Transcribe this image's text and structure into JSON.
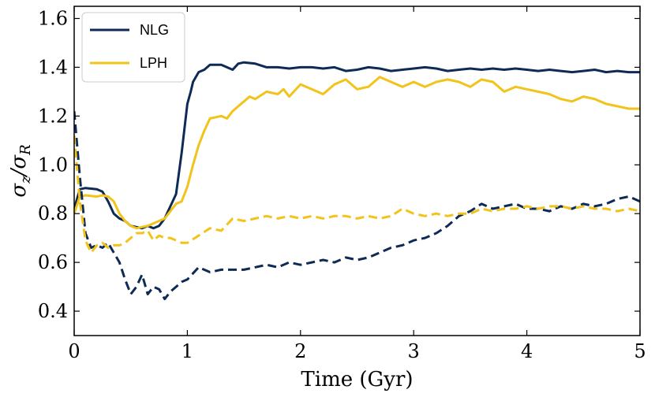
{
  "chart_data": {
    "type": "line",
    "title": "",
    "xlabel": "Time (Gyr)",
    "ylabel": "σz/σR",
    "ylabel_main": "σ",
    "ylabel_sub1": "z",
    "ylabel_slash": "/σ",
    "ylabel_sub2": "R",
    "xlim": [
      0,
      5
    ],
    "ylim": [
      0.3,
      1.65
    ],
    "xticks": [
      0,
      1,
      2,
      3,
      4,
      5
    ],
    "xtick_labels": [
      "0",
      "1",
      "2",
      "3",
      "4",
      "5"
    ],
    "yticks": [
      0.4,
      0.6,
      0.8,
      1.0,
      1.2,
      1.4,
      1.6
    ],
    "ytick_labels": [
      "0.4",
      "0.6",
      "0.8",
      "1.0",
      "1.2",
      "1.4",
      "1.6"
    ],
    "grid": false,
    "legend_position": "top-left",
    "colors": {
      "NLG": "#0d2b55",
      "LPH": "#f2c31a"
    },
    "series": [
      {
        "name": "NLG",
        "style": "solid",
        "in_legend": true,
        "points": [
          [
            0,
            0.82
          ],
          [
            0.05,
            0.9
          ],
          [
            0.1,
            0.905
          ],
          [
            0.2,
            0.9
          ],
          [
            0.25,
            0.89
          ],
          [
            0.3,
            0.85
          ],
          [
            0.35,
            0.8
          ],
          [
            0.4,
            0.78
          ],
          [
            0.45,
            0.77
          ],
          [
            0.5,
            0.75
          ],
          [
            0.6,
            0.74
          ],
          [
            0.65,
            0.75
          ],
          [
            0.7,
            0.74
          ],
          [
            0.75,
            0.75
          ],
          [
            0.8,
            0.78
          ],
          [
            0.85,
            0.83
          ],
          [
            0.9,
            0.88
          ],
          [
            0.95,
            1.05
          ],
          [
            1.0,
            1.25
          ],
          [
            1.03,
            1.3
          ],
          [
            1.05,
            1.34
          ],
          [
            1.1,
            1.38
          ],
          [
            1.15,
            1.39
          ],
          [
            1.2,
            1.41
          ],
          [
            1.3,
            1.41
          ],
          [
            1.4,
            1.39
          ],
          [
            1.45,
            1.415
          ],
          [
            1.5,
            1.42
          ],
          [
            1.6,
            1.415
          ],
          [
            1.7,
            1.4
          ],
          [
            1.8,
            1.4
          ],
          [
            1.9,
            1.395
          ],
          [
            2.0,
            1.4
          ],
          [
            2.1,
            1.4
          ],
          [
            2.2,
            1.395
          ],
          [
            2.3,
            1.4
          ],
          [
            2.4,
            1.385
          ],
          [
            2.5,
            1.39
          ],
          [
            2.6,
            1.4
          ],
          [
            2.7,
            1.395
          ],
          [
            2.8,
            1.385
          ],
          [
            2.9,
            1.39
          ],
          [
            3.0,
            1.395
          ],
          [
            3.1,
            1.4
          ],
          [
            3.2,
            1.395
          ],
          [
            3.3,
            1.385
          ],
          [
            3.4,
            1.39
          ],
          [
            3.5,
            1.395
          ],
          [
            3.6,
            1.39
          ],
          [
            3.7,
            1.395
          ],
          [
            3.8,
            1.39
          ],
          [
            3.9,
            1.395
          ],
          [
            4.0,
            1.39
          ],
          [
            4.1,
            1.385
          ],
          [
            4.2,
            1.39
          ],
          [
            4.3,
            1.385
          ],
          [
            4.4,
            1.38
          ],
          [
            4.5,
            1.385
          ],
          [
            4.6,
            1.39
          ],
          [
            4.7,
            1.38
          ],
          [
            4.8,
            1.385
          ],
          [
            4.9,
            1.38
          ],
          [
            5.0,
            1.38
          ]
        ]
      },
      {
        "name": "LPH",
        "style": "solid",
        "in_legend": true,
        "points": [
          [
            0,
            0.8
          ],
          [
            0.05,
            0.87
          ],
          [
            0.1,
            0.875
          ],
          [
            0.2,
            0.87
          ],
          [
            0.25,
            0.875
          ],
          [
            0.3,
            0.87
          ],
          [
            0.35,
            0.85
          ],
          [
            0.4,
            0.8
          ],
          [
            0.45,
            0.77
          ],
          [
            0.5,
            0.75
          ],
          [
            0.55,
            0.74
          ],
          [
            0.6,
            0.745
          ],
          [
            0.65,
            0.75
          ],
          [
            0.7,
            0.76
          ],
          [
            0.75,
            0.77
          ],
          [
            0.8,
            0.78
          ],
          [
            0.85,
            0.81
          ],
          [
            0.9,
            0.84
          ],
          [
            0.95,
            0.85
          ],
          [
            1.0,
            0.91
          ],
          [
            1.05,
            1.0
          ],
          [
            1.1,
            1.08
          ],
          [
            1.15,
            1.14
          ],
          [
            1.2,
            1.19
          ],
          [
            1.3,
            1.2
          ],
          [
            1.35,
            1.19
          ],
          [
            1.4,
            1.22
          ],
          [
            1.45,
            1.24
          ],
          [
            1.5,
            1.26
          ],
          [
            1.55,
            1.28
          ],
          [
            1.6,
            1.27
          ],
          [
            1.7,
            1.3
          ],
          [
            1.8,
            1.29
          ],
          [
            1.85,
            1.31
          ],
          [
            1.9,
            1.28
          ],
          [
            2.0,
            1.33
          ],
          [
            2.1,
            1.31
          ],
          [
            2.2,
            1.29
          ],
          [
            2.3,
            1.33
          ],
          [
            2.4,
            1.35
          ],
          [
            2.5,
            1.31
          ],
          [
            2.6,
            1.32
          ],
          [
            2.7,
            1.36
          ],
          [
            2.8,
            1.34
          ],
          [
            2.9,
            1.32
          ],
          [
            3.0,
            1.34
          ],
          [
            3.1,
            1.32
          ],
          [
            3.2,
            1.34
          ],
          [
            3.3,
            1.35
          ],
          [
            3.4,
            1.34
          ],
          [
            3.5,
            1.32
          ],
          [
            3.6,
            1.35
          ],
          [
            3.7,
            1.34
          ],
          [
            3.8,
            1.3
          ],
          [
            3.9,
            1.32
          ],
          [
            4.0,
            1.31
          ],
          [
            4.1,
            1.3
          ],
          [
            4.2,
            1.29
          ],
          [
            4.3,
            1.27
          ],
          [
            4.4,
            1.26
          ],
          [
            4.5,
            1.28
          ],
          [
            4.6,
            1.27
          ],
          [
            4.7,
            1.25
          ],
          [
            4.8,
            1.24
          ],
          [
            4.9,
            1.23
          ],
          [
            5.0,
            1.23
          ]
        ]
      },
      {
        "name": "NLG (dashed)",
        "style": "dashed",
        "in_legend": false,
        "color_key": "NLG",
        "points": [
          [
            0,
            1.22
          ],
          [
            0.05,
            0.95
          ],
          [
            0.1,
            0.72
          ],
          [
            0.15,
            0.66
          ],
          [
            0.2,
            0.67
          ],
          [
            0.25,
            0.66
          ],
          [
            0.3,
            0.68
          ],
          [
            0.35,
            0.64
          ],
          [
            0.4,
            0.6
          ],
          [
            0.45,
            0.53
          ],
          [
            0.5,
            0.47
          ],
          [
            0.55,
            0.5
          ],
          [
            0.6,
            0.55
          ],
          [
            0.65,
            0.47
          ],
          [
            0.7,
            0.5
          ],
          [
            0.75,
            0.49
          ],
          [
            0.8,
            0.45
          ],
          [
            0.85,
            0.48
          ],
          [
            0.9,
            0.5
          ],
          [
            0.95,
            0.52
          ],
          [
            1.0,
            0.53
          ],
          [
            1.1,
            0.58
          ],
          [
            1.2,
            0.56
          ],
          [
            1.3,
            0.57
          ],
          [
            1.4,
            0.57
          ],
          [
            1.5,
            0.57
          ],
          [
            1.6,
            0.58
          ],
          [
            1.7,
            0.59
          ],
          [
            1.8,
            0.58
          ],
          [
            1.9,
            0.6
          ],
          [
            2.0,
            0.59
          ],
          [
            2.1,
            0.6
          ],
          [
            2.2,
            0.61
          ],
          [
            2.3,
            0.6
          ],
          [
            2.4,
            0.62
          ],
          [
            2.5,
            0.61
          ],
          [
            2.6,
            0.62
          ],
          [
            2.7,
            0.64
          ],
          [
            2.8,
            0.66
          ],
          [
            2.9,
            0.67
          ],
          [
            3.0,
            0.69
          ],
          [
            3.1,
            0.7
          ],
          [
            3.2,
            0.72
          ],
          [
            3.3,
            0.75
          ],
          [
            3.4,
            0.79
          ],
          [
            3.5,
            0.81
          ],
          [
            3.6,
            0.84
          ],
          [
            3.7,
            0.82
          ],
          [
            3.8,
            0.83
          ],
          [
            3.9,
            0.84
          ],
          [
            4.0,
            0.82
          ],
          [
            4.1,
            0.82
          ],
          [
            4.2,
            0.81
          ],
          [
            4.3,
            0.83
          ],
          [
            4.4,
            0.82
          ],
          [
            4.5,
            0.84
          ],
          [
            4.6,
            0.83
          ],
          [
            4.7,
            0.84
          ],
          [
            4.8,
            0.86
          ],
          [
            4.9,
            0.87
          ],
          [
            5.0,
            0.85
          ]
        ]
      },
      {
        "name": "LPH (dashed)",
        "style": "dashed",
        "in_legend": false,
        "color_key": "LPH",
        "points": [
          [
            0,
            1.12
          ],
          [
            0.05,
            0.85
          ],
          [
            0.1,
            0.69
          ],
          [
            0.15,
            0.64
          ],
          [
            0.2,
            0.67
          ],
          [
            0.25,
            0.68
          ],
          [
            0.3,
            0.66
          ],
          [
            0.35,
            0.67
          ],
          [
            0.4,
            0.67
          ],
          [
            0.45,
            0.68
          ],
          [
            0.5,
            0.7
          ],
          [
            0.55,
            0.72
          ],
          [
            0.6,
            0.72
          ],
          [
            0.65,
            0.73
          ],
          [
            0.7,
            0.69
          ],
          [
            0.75,
            0.71
          ],
          [
            0.8,
            0.7
          ],
          [
            0.85,
            0.7
          ],
          [
            0.9,
            0.69
          ],
          [
            0.95,
            0.68
          ],
          [
            1.0,
            0.68
          ],
          [
            1.1,
            0.71
          ],
          [
            1.2,
            0.74
          ],
          [
            1.3,
            0.73
          ],
          [
            1.4,
            0.78
          ],
          [
            1.5,
            0.77
          ],
          [
            1.6,
            0.78
          ],
          [
            1.7,
            0.79
          ],
          [
            1.8,
            0.78
          ],
          [
            1.9,
            0.79
          ],
          [
            2.0,
            0.78
          ],
          [
            2.1,
            0.79
          ],
          [
            2.2,
            0.78
          ],
          [
            2.3,
            0.79
          ],
          [
            2.4,
            0.79
          ],
          [
            2.5,
            0.78
          ],
          [
            2.6,
            0.79
          ],
          [
            2.7,
            0.78
          ],
          [
            2.8,
            0.79
          ],
          [
            2.9,
            0.82
          ],
          [
            3.0,
            0.8
          ],
          [
            3.1,
            0.79
          ],
          [
            3.2,
            0.8
          ],
          [
            3.3,
            0.79
          ],
          [
            3.4,
            0.8
          ],
          [
            3.5,
            0.8
          ],
          [
            3.6,
            0.82
          ],
          [
            3.7,
            0.81
          ],
          [
            3.8,
            0.82
          ],
          [
            3.9,
            0.82
          ],
          [
            4.0,
            0.83
          ],
          [
            4.1,
            0.82
          ],
          [
            4.2,
            0.83
          ],
          [
            4.3,
            0.83
          ],
          [
            4.4,
            0.82
          ],
          [
            4.5,
            0.83
          ],
          [
            4.6,
            0.82
          ],
          [
            4.7,
            0.82
          ],
          [
            4.8,
            0.81
          ],
          [
            4.9,
            0.82
          ],
          [
            5.0,
            0.81
          ]
        ]
      }
    ]
  }
}
